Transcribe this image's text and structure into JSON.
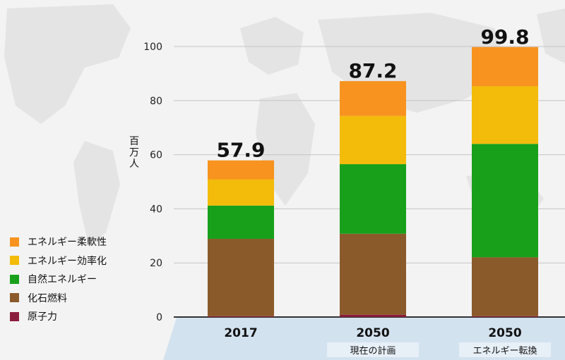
{
  "chart_data": {
    "type": "bar",
    "stacked": true,
    "ylabel": "百万人",
    "ylim": [
      0,
      100
    ],
    "yticks": [
      0,
      20,
      40,
      60,
      80,
      100
    ],
    "grid": true,
    "legend_position": "bottom-left",
    "categories": [
      "2017",
      "2050",
      "2050"
    ],
    "category_sublabels": [
      "",
      "現在の計画",
      "エネルギー転換"
    ],
    "totals": [
      "57.9",
      "87.2",
      "99.8"
    ],
    "series": [
      {
        "name": "原子力",
        "color": "#8b1d3c",
        "values": [
          0.3,
          0.8,
          0.3
        ]
      },
      {
        "name": "化石燃料",
        "color": "#8b5a2b",
        "values": [
          28.6,
          30.0,
          21.8
        ]
      },
      {
        "name": "自然エネルギー",
        "color": "#18a01a",
        "values": [
          12.3,
          25.7,
          41.9
        ]
      },
      {
        "name": "エネルギー効率化",
        "color": "#f3bb0a",
        "values": [
          9.7,
          17.8,
          21.3
        ]
      },
      {
        "name": "エネルギー柔軟性",
        "color": "#f7931e",
        "values": [
          7.0,
          12.9,
          14.5
        ]
      }
    ]
  }
}
